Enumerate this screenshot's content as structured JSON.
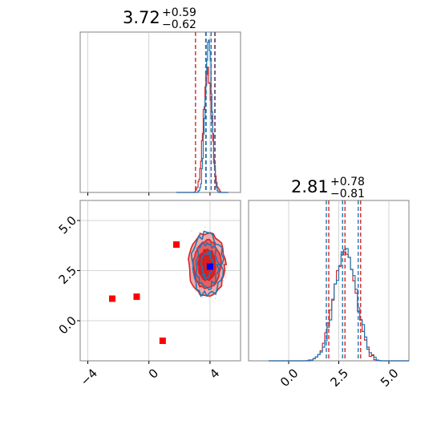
{
  "colors": {
    "series_a": "#1f77b4",
    "series_b": "#d62728",
    "markers": "#ff0000",
    "blue_marker": "#0000ff",
    "grid": "#c8c8c8",
    "frame": "#808080"
  },
  "panels": {
    "top_left": {
      "title_value": "3.72",
      "title_plus": "+0.59",
      "title_minus": "−0.62"
    },
    "bottom_right": {
      "title_value": "2.81",
      "title_plus": "+0.78",
      "title_minus": "−0.81"
    }
  },
  "chart_data": [
    {
      "type": "histogram",
      "panel": "top_left",
      "parameter": "x",
      "xlim": [
        -4.5,
        6.0
      ],
      "series": [
        {
          "color": "blue",
          "median": 3.72,
          "quantiles": [
            3.1,
            3.72,
            4.31
          ]
        },
        {
          "color": "red",
          "median": 3.72,
          "quantiles": [
            3.1,
            3.72,
            4.31
          ],
          "lower_dashed": 3.05
        }
      ]
    },
    {
      "type": "scatter",
      "panel": "bottom_left",
      "xlim": [
        -4.5,
        6.0
      ],
      "ylim": [
        -2.0,
        6.0
      ],
      "x_ticks": [
        -4,
        0,
        4
      ],
      "y_ticks": [
        0.0,
        2.5,
        5.0
      ],
      "x_tick_labels": [
        "−4",
        "0",
        "4"
      ],
      "y_tick_labels": [
        "0.0",
        "2.5",
        "5.0"
      ],
      "points_red_squares": [
        {
          "x": -2.4,
          "y": 1.1
        },
        {
          "x": -0.8,
          "y": 1.2
        },
        {
          "x": 1.8,
          "y": 3.8
        },
        {
          "x": 0.9,
          "y": -1.0
        }
      ],
      "point_blue_square": {
        "x": 4.0,
        "y": 2.7
      },
      "contours": {
        "center": {
          "x": 3.8,
          "y": 2.8
        },
        "sigma_x": 0.6,
        "sigma_y": 0.8
      }
    },
    {
      "type": "histogram",
      "panel": "bottom_right",
      "parameter": "y",
      "xlim": [
        -2.0,
        6.0
      ],
      "x_ticks": [
        0.0,
        2.5,
        5.0
      ],
      "x_tick_labels": [
        "0.0",
        "2.5",
        "5.0"
      ],
      "series": [
        {
          "color": "blue",
          "median": 2.81,
          "quantiles": [
            2.0,
            2.81,
            3.59
          ]
        },
        {
          "color": "red",
          "median": 2.81,
          "quantiles": [
            2.0,
            2.81,
            3.59
          ]
        }
      ]
    }
  ]
}
